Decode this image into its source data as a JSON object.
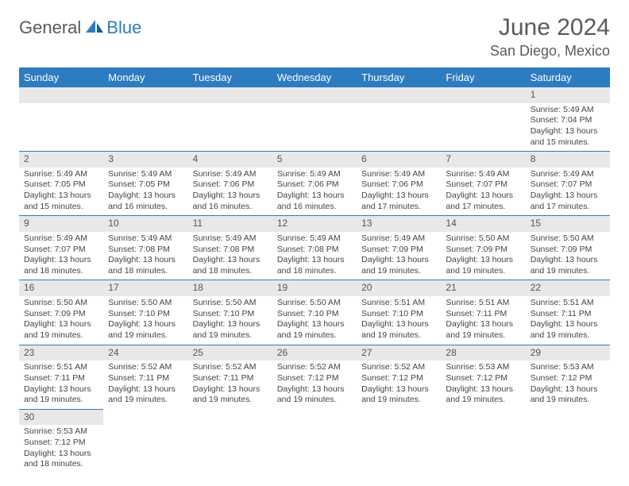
{
  "logo": {
    "part1": "General",
    "part2": "Blue"
  },
  "title": "June 2024",
  "location": "San Diego, Mexico",
  "colors": {
    "header_bg": "#2d7bc0",
    "header_text": "#ffffff",
    "daynum_bg": "#e8e8e8",
    "border": "#2d7bc0",
    "text": "#444444",
    "logo_gray": "#5a5a5a",
    "logo_blue": "#2d7bc0"
  },
  "weekdays": [
    "Sunday",
    "Monday",
    "Tuesday",
    "Wednesday",
    "Thursday",
    "Friday",
    "Saturday"
  ],
  "weeks": [
    [
      null,
      null,
      null,
      null,
      null,
      null,
      {
        "n": "1",
        "sr": "Sunrise: 5:49 AM",
        "ss": "Sunset: 7:04 PM",
        "d1": "Daylight: 13 hours",
        "d2": "and 15 minutes."
      }
    ],
    [
      {
        "n": "2",
        "sr": "Sunrise: 5:49 AM",
        "ss": "Sunset: 7:05 PM",
        "d1": "Daylight: 13 hours",
        "d2": "and 15 minutes."
      },
      {
        "n": "3",
        "sr": "Sunrise: 5:49 AM",
        "ss": "Sunset: 7:05 PM",
        "d1": "Daylight: 13 hours",
        "d2": "and 16 minutes."
      },
      {
        "n": "4",
        "sr": "Sunrise: 5:49 AM",
        "ss": "Sunset: 7:06 PM",
        "d1": "Daylight: 13 hours",
        "d2": "and 16 minutes."
      },
      {
        "n": "5",
        "sr": "Sunrise: 5:49 AM",
        "ss": "Sunset: 7:06 PM",
        "d1": "Daylight: 13 hours",
        "d2": "and 16 minutes."
      },
      {
        "n": "6",
        "sr": "Sunrise: 5:49 AM",
        "ss": "Sunset: 7:06 PM",
        "d1": "Daylight: 13 hours",
        "d2": "and 17 minutes."
      },
      {
        "n": "7",
        "sr": "Sunrise: 5:49 AM",
        "ss": "Sunset: 7:07 PM",
        "d1": "Daylight: 13 hours",
        "d2": "and 17 minutes."
      },
      {
        "n": "8",
        "sr": "Sunrise: 5:49 AM",
        "ss": "Sunset: 7:07 PM",
        "d1": "Daylight: 13 hours",
        "d2": "and 17 minutes."
      }
    ],
    [
      {
        "n": "9",
        "sr": "Sunrise: 5:49 AM",
        "ss": "Sunset: 7:07 PM",
        "d1": "Daylight: 13 hours",
        "d2": "and 18 minutes."
      },
      {
        "n": "10",
        "sr": "Sunrise: 5:49 AM",
        "ss": "Sunset: 7:08 PM",
        "d1": "Daylight: 13 hours",
        "d2": "and 18 minutes."
      },
      {
        "n": "11",
        "sr": "Sunrise: 5:49 AM",
        "ss": "Sunset: 7:08 PM",
        "d1": "Daylight: 13 hours",
        "d2": "and 18 minutes."
      },
      {
        "n": "12",
        "sr": "Sunrise: 5:49 AM",
        "ss": "Sunset: 7:08 PM",
        "d1": "Daylight: 13 hours",
        "d2": "and 18 minutes."
      },
      {
        "n": "13",
        "sr": "Sunrise: 5:49 AM",
        "ss": "Sunset: 7:09 PM",
        "d1": "Daylight: 13 hours",
        "d2": "and 19 minutes."
      },
      {
        "n": "14",
        "sr": "Sunrise: 5:50 AM",
        "ss": "Sunset: 7:09 PM",
        "d1": "Daylight: 13 hours",
        "d2": "and 19 minutes."
      },
      {
        "n": "15",
        "sr": "Sunrise: 5:50 AM",
        "ss": "Sunset: 7:09 PM",
        "d1": "Daylight: 13 hours",
        "d2": "and 19 minutes."
      }
    ],
    [
      {
        "n": "16",
        "sr": "Sunrise: 5:50 AM",
        "ss": "Sunset: 7:09 PM",
        "d1": "Daylight: 13 hours",
        "d2": "and 19 minutes."
      },
      {
        "n": "17",
        "sr": "Sunrise: 5:50 AM",
        "ss": "Sunset: 7:10 PM",
        "d1": "Daylight: 13 hours",
        "d2": "and 19 minutes."
      },
      {
        "n": "18",
        "sr": "Sunrise: 5:50 AM",
        "ss": "Sunset: 7:10 PM",
        "d1": "Daylight: 13 hours",
        "d2": "and 19 minutes."
      },
      {
        "n": "19",
        "sr": "Sunrise: 5:50 AM",
        "ss": "Sunset: 7:10 PM",
        "d1": "Daylight: 13 hours",
        "d2": "and 19 minutes."
      },
      {
        "n": "20",
        "sr": "Sunrise: 5:51 AM",
        "ss": "Sunset: 7:10 PM",
        "d1": "Daylight: 13 hours",
        "d2": "and 19 minutes."
      },
      {
        "n": "21",
        "sr": "Sunrise: 5:51 AM",
        "ss": "Sunset: 7:11 PM",
        "d1": "Daylight: 13 hours",
        "d2": "and 19 minutes."
      },
      {
        "n": "22",
        "sr": "Sunrise: 5:51 AM",
        "ss": "Sunset: 7:11 PM",
        "d1": "Daylight: 13 hours",
        "d2": "and 19 minutes."
      }
    ],
    [
      {
        "n": "23",
        "sr": "Sunrise: 5:51 AM",
        "ss": "Sunset: 7:11 PM",
        "d1": "Daylight: 13 hours",
        "d2": "and 19 minutes."
      },
      {
        "n": "24",
        "sr": "Sunrise: 5:52 AM",
        "ss": "Sunset: 7:11 PM",
        "d1": "Daylight: 13 hours",
        "d2": "and 19 minutes."
      },
      {
        "n": "25",
        "sr": "Sunrise: 5:52 AM",
        "ss": "Sunset: 7:11 PM",
        "d1": "Daylight: 13 hours",
        "d2": "and 19 minutes."
      },
      {
        "n": "26",
        "sr": "Sunrise: 5:52 AM",
        "ss": "Sunset: 7:12 PM",
        "d1": "Daylight: 13 hours",
        "d2": "and 19 minutes."
      },
      {
        "n": "27",
        "sr": "Sunrise: 5:52 AM",
        "ss": "Sunset: 7:12 PM",
        "d1": "Daylight: 13 hours",
        "d2": "and 19 minutes."
      },
      {
        "n": "28",
        "sr": "Sunrise: 5:53 AM",
        "ss": "Sunset: 7:12 PM",
        "d1": "Daylight: 13 hours",
        "d2": "and 19 minutes."
      },
      {
        "n": "29",
        "sr": "Sunrise: 5:53 AM",
        "ss": "Sunset: 7:12 PM",
        "d1": "Daylight: 13 hours",
        "d2": "and 19 minutes."
      }
    ],
    [
      {
        "n": "30",
        "sr": "Sunrise: 5:53 AM",
        "ss": "Sunset: 7:12 PM",
        "d1": "Daylight: 13 hours",
        "d2": "and 18 minutes."
      },
      null,
      null,
      null,
      null,
      null,
      null
    ]
  ]
}
